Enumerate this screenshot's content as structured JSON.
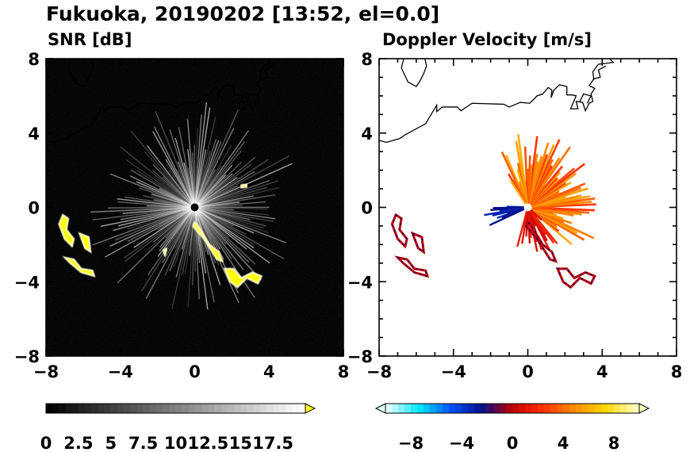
{
  "title": "Fukuoka, 20190202 [13:52, el=0.0]",
  "chart_data": [
    {
      "type": "heatmap",
      "title": "SNR [dB]",
      "xlim": [
        -8,
        8
      ],
      "ylim": [
        -8,
        8
      ],
      "xticks": [
        "−8",
        "−4",
        "0",
        "4",
        "8"
      ],
      "yticks": [
        "8",
        "4",
        "0",
        "−4",
        "−8"
      ],
      "colorbar": {
        "range": [
          0,
          20
        ],
        "ticks": [
          "0",
          "2.5",
          "5",
          "7.5",
          "10",
          "12.5",
          "15",
          "17.5"
        ],
        "tick_values": [
          0,
          2.5,
          5,
          7.5,
          10,
          12.5,
          15,
          17.5
        ],
        "colors": [
          "#000000",
          "#ffffff"
        ],
        "extend_color": "#ffff00"
      }
    },
    {
      "type": "heatmap",
      "title": "Doppler Velocity [m/s]",
      "xlim": [
        -8,
        8
      ],
      "ylim": [
        -8,
        8
      ],
      "xticks": [
        "−8",
        "−4",
        "0",
        "4",
        "8"
      ],
      "yticks": [
        "8",
        "4",
        "0",
        "−4",
        "−8"
      ],
      "colorbar": {
        "range": [
          -10,
          10
        ],
        "ticks": [
          "−8",
          "−4",
          "0",
          "4",
          "8"
        ],
        "tick_values": [
          -8,
          -4,
          0,
          4,
          8
        ],
        "colors": [
          "#e0ffff",
          "#00e5ff",
          "#0050ff",
          "#00108a",
          "#c00000",
          "#ff3000",
          "#ff8c00",
          "#ffd700",
          "#ffffc0"
        ]
      }
    }
  ]
}
